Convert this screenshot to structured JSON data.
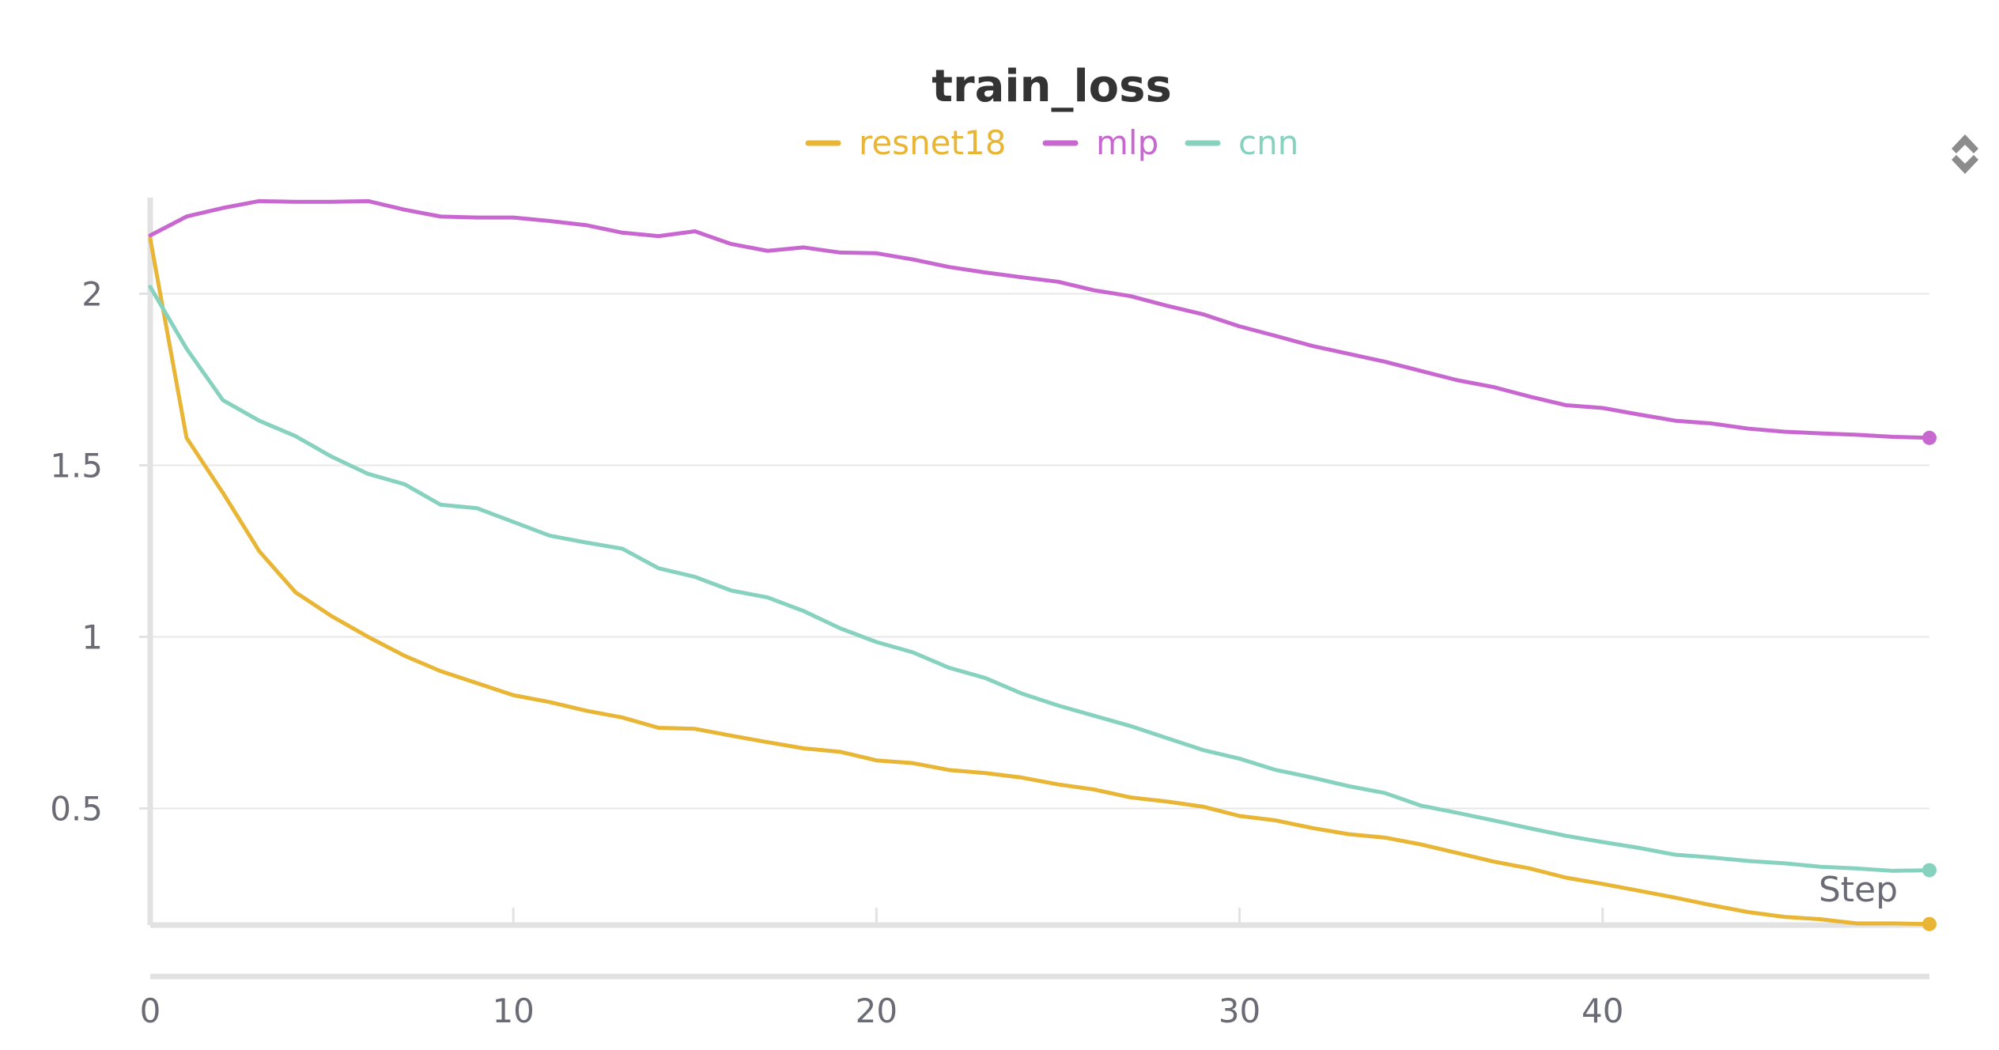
{
  "chart_data": {
    "type": "line",
    "title": "train_loss",
    "xlabel": "Step",
    "ylabel": "",
    "xlim": [
      0,
      49
    ],
    "ylim": [
      0.16,
      2.28
    ],
    "x_ticks": [
      0,
      10,
      20,
      30,
      40
    ],
    "y_ticks": [
      0.5,
      1,
      1.5,
      2
    ],
    "grid": true,
    "legend": "top-center",
    "x": [
      0,
      1,
      2,
      3,
      4,
      5,
      6,
      7,
      8,
      9,
      10,
      11,
      12,
      13,
      14,
      15,
      16,
      17,
      18,
      19,
      20,
      21,
      22,
      23,
      24,
      25,
      26,
      27,
      28,
      29,
      30,
      31,
      32,
      33,
      34,
      35,
      36,
      37,
      38,
      39,
      40,
      41,
      42,
      43,
      44,
      45,
      46,
      47,
      48,
      49
    ],
    "series": [
      {
        "name": "resnet18",
        "color": "#e8b535",
        "values": [
          2.16,
          1.58,
          1.42,
          1.25,
          1.13,
          1.06,
          1.0,
          0.945,
          0.9,
          0.865,
          0.83,
          0.81,
          0.785,
          0.765,
          0.735,
          0.732,
          0.712,
          0.693,
          0.675,
          0.665,
          0.64,
          0.632,
          0.612,
          0.603,
          0.59,
          0.57,
          0.555,
          0.532,
          0.52,
          0.505,
          0.478,
          0.465,
          0.443,
          0.425,
          0.415,
          0.395,
          0.37,
          0.345,
          0.325,
          0.298,
          0.28,
          0.26,
          0.24,
          0.218,
          0.198,
          0.184,
          0.177,
          0.165,
          0.165,
          0.163
        ]
      },
      {
        "name": "mlp",
        "color": "#c767cf",
        "values": [
          2.17,
          2.225,
          2.25,
          2.27,
          2.268,
          2.268,
          2.27,
          2.245,
          2.225,
          2.222,
          2.222,
          2.212,
          2.2,
          2.178,
          2.168,
          2.182,
          2.145,
          2.125,
          2.135,
          2.12,
          2.118,
          2.1,
          2.078,
          2.062,
          2.048,
          2.035,
          2.01,
          1.993,
          1.965,
          1.94,
          1.905,
          1.877,
          1.848,
          1.825,
          1.802,
          1.775,
          1.748,
          1.728,
          1.7,
          1.675,
          1.667,
          1.648,
          1.63,
          1.622,
          1.607,
          1.598,
          1.593,
          1.589,
          1.583,
          1.58
        ]
      },
      {
        "name": "cnn",
        "color": "#86d2bf",
        "values": [
          2.02,
          1.84,
          1.69,
          1.63,
          1.585,
          1.525,
          1.475,
          1.445,
          1.385,
          1.375,
          1.335,
          1.295,
          1.275,
          1.257,
          1.2,
          1.175,
          1.135,
          1.115,
          1.075,
          1.025,
          0.985,
          0.955,
          0.91,
          0.88,
          0.835,
          0.8,
          0.77,
          0.74,
          0.705,
          0.67,
          0.645,
          0.612,
          0.59,
          0.565,
          0.545,
          0.508,
          0.487,
          0.465,
          0.442,
          0.42,
          0.402,
          0.385,
          0.365,
          0.357,
          0.347,
          0.34,
          0.33,
          0.325,
          0.318,
          0.32
        ]
      }
    ]
  },
  "toolbar": {
    "scroll_icon": "up-down-arrows-icon"
  }
}
